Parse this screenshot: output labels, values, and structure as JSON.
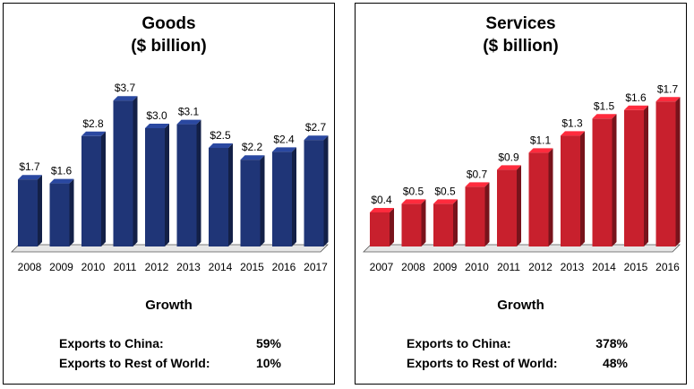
{
  "panels": {
    "goods": {
      "title_line1": "Goods",
      "title_line2": "($ billion)",
      "growth_title": "Growth",
      "growth": [
        {
          "label": "Exports to China:",
          "value": "59%"
        },
        {
          "label": "Exports to Rest of World:",
          "value": "10%"
        }
      ]
    },
    "services": {
      "title_line1": "Services",
      "title_line2": "($ billion)",
      "growth_title": "Growth",
      "growth": [
        {
          "label": "Exports to China:",
          "value": "378%"
        },
        {
          "label": "Exports to Rest of World:",
          "value": "48%"
        }
      ]
    }
  },
  "chart_data": [
    {
      "type": "bar",
      "title": "Goods ($ billion)",
      "categories": [
        "2008",
        "2009",
        "2010",
        "2011",
        "2012",
        "2013",
        "2014",
        "2015",
        "2016",
        "2017"
      ],
      "values": [
        1.7,
        1.6,
        2.8,
        3.7,
        3.0,
        3.1,
        2.5,
        2.2,
        2.4,
        2.7
      ],
      "data_labels": [
        "$1.7",
        "$1.6",
        "$2.8",
        "$3.7",
        "$3.0",
        "$3.1",
        "$2.5",
        "$2.2",
        "$2.4",
        "$2.7"
      ],
      "ylim": [
        0,
        4.0
      ],
      "color": "#1f3577",
      "grid": false,
      "legend": "none"
    },
    {
      "type": "bar",
      "title": "Services ($ billion)",
      "categories": [
        "2007",
        "2008",
        "2009",
        "2010",
        "2011",
        "2012",
        "2013",
        "2014",
        "2015",
        "2016"
      ],
      "values": [
        0.4,
        0.5,
        0.5,
        0.7,
        0.9,
        1.1,
        1.3,
        1.5,
        1.6,
        1.7
      ],
      "data_labels": [
        "$0.4",
        "$0.5",
        "$0.5",
        "$0.7",
        "$0.9",
        "$1.1",
        "$1.3",
        "$1.5",
        "$1.6",
        "$1.7"
      ],
      "ylim": [
        0,
        1.85
      ],
      "color": "#c8202d",
      "grid": false,
      "legend": "none"
    }
  ]
}
